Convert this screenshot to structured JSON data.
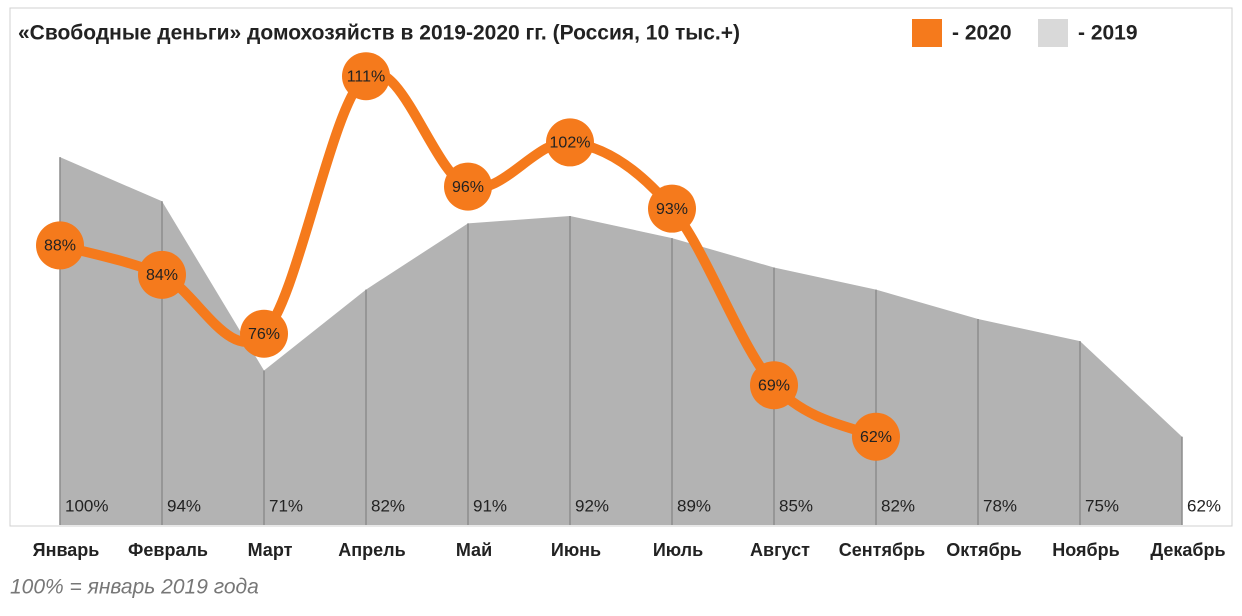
{
  "chart_data": {
    "type": "line-area",
    "title": "«Свободные деньги» домохозяйств в 2019-2020 гг. (Россия, 10 тыс.+)",
    "footnote": "100% = январь 2019 года",
    "categories": [
      "Январь",
      "Февраль",
      "Март",
      "Апрель",
      "Май",
      "Июнь",
      "Июль",
      "Август",
      "Сентябрь",
      "Октябрь",
      "Ноябрь",
      "Декабрь"
    ],
    "ylim": [
      50,
      120
    ],
    "series": [
      {
        "name": "- 2020",
        "color": "#f57a1c",
        "kind": "line",
        "values": [
          88,
          84,
          76,
          111,
          96,
          102,
          93,
          69,
          62,
          null,
          null,
          null
        ],
        "value_labels": [
          "88%",
          "84%",
          "76%",
          "111%",
          "96%",
          "102%",
          "93%",
          "69%",
          "62%",
          null,
          null,
          null
        ]
      },
      {
        "name": "- 2019",
        "color": "#b3b3b3",
        "kind": "area",
        "values": [
          100,
          94,
          71,
          82,
          91,
          92,
          89,
          85,
          82,
          78,
          75,
          62
        ],
        "value_labels": [
          "100%",
          "94%",
          "71%",
          "82%",
          "91%",
          "92%",
          "89%",
          "85%",
          "82%",
          "78%",
          "75%",
          "62%"
        ]
      }
    ]
  }
}
